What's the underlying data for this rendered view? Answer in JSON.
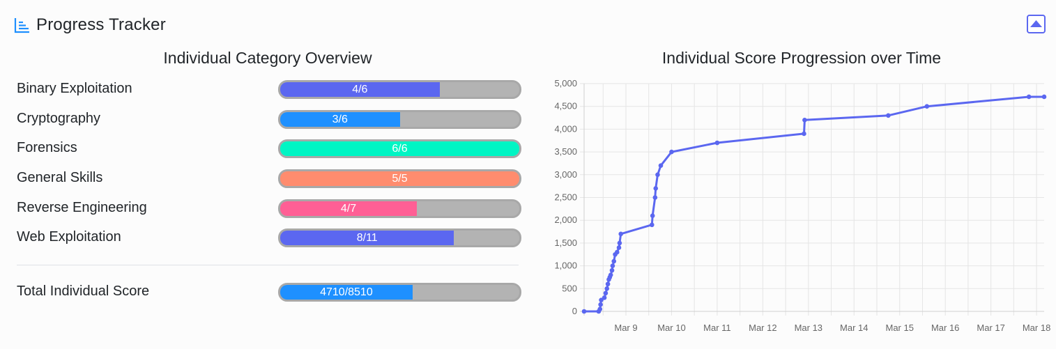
{
  "header": {
    "title": "Progress Tracker"
  },
  "left_title": "Individual Category Overview",
  "right_title": "Individual Score Progression over Time",
  "categories": [
    {
      "name": "Binary Exploitation",
      "solved": 4,
      "total": 6,
      "label": "4/6",
      "color": "#5b67f0"
    },
    {
      "name": "Cryptography",
      "solved": 3,
      "total": 6,
      "label": "3/6",
      "color": "#1e90ff"
    },
    {
      "name": "Forensics",
      "solved": 6,
      "total": 6,
      "label": "6/6",
      "color": "#00f5c4"
    },
    {
      "name": "General Skills",
      "solved": 5,
      "total": 5,
      "label": "5/5",
      "color": "#ff8c6e"
    },
    {
      "name": "Reverse Engineering",
      "solved": 4,
      "total": 7,
      "label": "4/7",
      "color": "#ff5f95"
    },
    {
      "name": "Web Exploitation",
      "solved": 8,
      "total": 11,
      "label": "8/11",
      "color": "#5b67f0"
    }
  ],
  "total": {
    "name": "Total Individual Score",
    "score": 4710,
    "max": 8510,
    "label": "4710/8510",
    "color": "#1e90ff"
  },
  "chart_data": {
    "type": "line",
    "color": "#5b67f0",
    "ylim": [
      0,
      5000
    ],
    "yticks": [
      "0",
      "500",
      "1,000",
      "1,500",
      "2,000",
      "2,500",
      "3,000",
      "3,500",
      "4,000",
      "4,500",
      "5,000"
    ],
    "xticks": [
      "Mar 9",
      "Mar 10",
      "Mar 11",
      "Mar 12",
      "Mar 13",
      "Mar 14",
      "Mar 15",
      "Mar 16",
      "Mar 17",
      "Mar 18"
    ],
    "xlim": [
      "Mar 8 02:00",
      "Mar 18 04:00"
    ],
    "grid": true,
    "legend": "none",
    "points": [
      {
        "x": "Mar 8 02:00",
        "y": 0
      },
      {
        "x": "Mar 8 09:40",
        "y": 0
      },
      {
        "x": "Mar 8 10:20",
        "y": 50
      },
      {
        "x": "Mar 8 10:40",
        "y": 150
      },
      {
        "x": "Mar 8 11:00",
        "y": 250
      },
      {
        "x": "Mar 8 12:40",
        "y": 300
      },
      {
        "x": "Mar 8 13:20",
        "y": 400
      },
      {
        "x": "Mar 8 14:00",
        "y": 500
      },
      {
        "x": "Mar 8 14:30",
        "y": 600
      },
      {
        "x": "Mar 8 15:00",
        "y": 700
      },
      {
        "x": "Mar 8 15:30",
        "y": 750
      },
      {
        "x": "Mar 8 16:00",
        "y": 800
      },
      {
        "x": "Mar 8 16:40",
        "y": 900
      },
      {
        "x": "Mar 8 17:00",
        "y": 1000
      },
      {
        "x": "Mar 8 17:40",
        "y": 1100
      },
      {
        "x": "Mar 8 18:20",
        "y": 1250
      },
      {
        "x": "Mar 8 19:20",
        "y": 1300
      },
      {
        "x": "Mar 8 20:20",
        "y": 1400
      },
      {
        "x": "Mar 8 20:40",
        "y": 1500
      },
      {
        "x": "Mar 8 21:20",
        "y": 1700
      },
      {
        "x": "Mar 9 13:40",
        "y": 1900
      },
      {
        "x": "Mar 9 14:00",
        "y": 2100
      },
      {
        "x": "Mar 9 15:20",
        "y": 2500
      },
      {
        "x": "Mar 9 15:40",
        "y": 2700
      },
      {
        "x": "Mar 9 16:40",
        "y": 3000
      },
      {
        "x": "Mar 9 18:20",
        "y": 3200
      },
      {
        "x": "Mar 10 00:00",
        "y": 3500
      },
      {
        "x": "Mar 11 00:00",
        "y": 3700
      },
      {
        "x": "Mar 12 21:40",
        "y": 3900
      },
      {
        "x": "Mar 12 22:00",
        "y": 4200
      },
      {
        "x": "Mar 14 18:00",
        "y": 4300
      },
      {
        "x": "Mar 15 14:20",
        "y": 4500
      },
      {
        "x": "Mar 17 20:00",
        "y": 4710
      },
      {
        "x": "Mar 18 04:00",
        "y": 4710
      }
    ]
  }
}
